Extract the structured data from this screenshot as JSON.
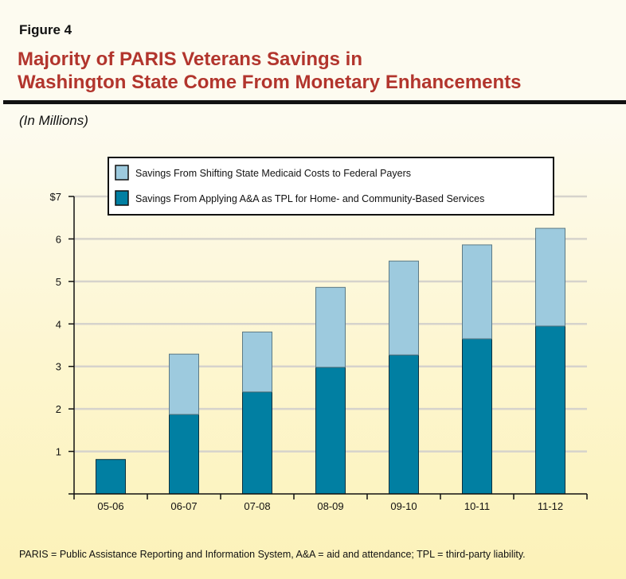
{
  "figure_label": "Figure 4",
  "title_line1": "Majority of PARIS Veterans Savings in",
  "title_line2": "Washington State Come From Monetary Enhancements",
  "units": "(In Millions)",
  "footnote": "PARIS = Public Assistance Reporting and Information System, A&A = aid and attendance; TPL = third-party liability.",
  "chart_data": {
    "type": "bar",
    "stacked": true,
    "categories": [
      "05-06",
      "06-07",
      "07-08",
      "08-09",
      "09-10",
      "10-11",
      "11-12"
    ],
    "series": [
      {
        "name": "Savings From Applying A&A as TPL for Home- and Community-Based Services",
        "color": "#017fa2",
        "values": [
          0.81,
          1.87,
          2.4,
          2.98,
          3.27,
          3.65,
          3.95
        ]
      },
      {
        "name": "Savings From Shifting State Medicaid Costs to Federal Payers",
        "color": "#9dcade",
        "values": [
          0,
          1.42,
          1.41,
          1.88,
          2.21,
          2.21,
          2.3
        ]
      }
    ],
    "legend_order": [
      1,
      0
    ],
    "y_ticks": [
      "",
      "1",
      "2",
      "3",
      "4",
      "5",
      "6",
      "$7"
    ],
    "ylim": [
      0,
      7
    ],
    "grid": true,
    "legend_position": "top"
  }
}
